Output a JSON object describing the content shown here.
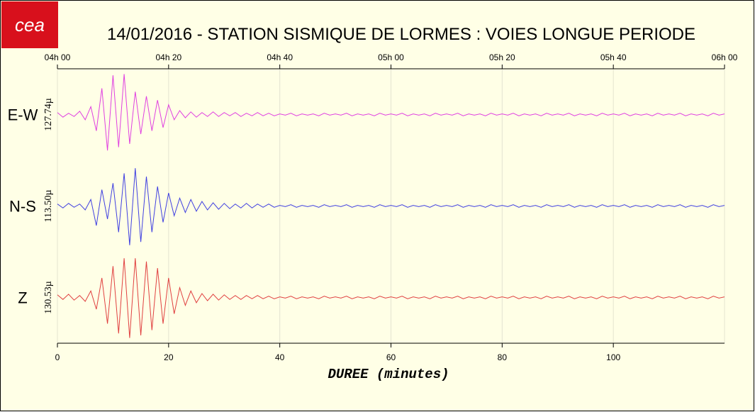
{
  "logo": "cea",
  "chart_data": {
    "type": "line",
    "title": "14/01/2016  -  STATION SISMIQUE DE LORMES : VOIES LONGUE PERIODE",
    "xlabel": "DUREE (minutes)",
    "xlim": [
      0,
      120
    ],
    "xticks": [
      0,
      20,
      40,
      60,
      80,
      100
    ],
    "top_ticks": [
      {
        "value": 0,
        "label": "04h 00"
      },
      {
        "value": 20,
        "label": "04h 20"
      },
      {
        "value": 40,
        "label": "04h 40"
      },
      {
        "value": 60,
        "label": "05h 00"
      },
      {
        "value": 80,
        "label": "05h 20"
      },
      {
        "value": 100,
        "label": "05h 40"
      },
      {
        "value": 120,
        "label": "06h 00"
      }
    ],
    "ylim": [
      -70,
      70
    ],
    "grid": true,
    "x": [
      0,
      1,
      2,
      3,
      4,
      5,
      6,
      7,
      8,
      9,
      10,
      11,
      12,
      13,
      14,
      15,
      16,
      17,
      18,
      19,
      20,
      21,
      22,
      23,
      24,
      25,
      26,
      27,
      28,
      29,
      30,
      31,
      32,
      33,
      34,
      35,
      36,
      37,
      38,
      39,
      40,
      41,
      42,
      43,
      44,
      45,
      46,
      47,
      48,
      49,
      50,
      51,
      52,
      53,
      54,
      55,
      56,
      57,
      58,
      59,
      60,
      61,
      62,
      63,
      64,
      65,
      66,
      67,
      68,
      69,
      70,
      71,
      72,
      73,
      74,
      75,
      76,
      77,
      78,
      79,
      80,
      81,
      82,
      83,
      84,
      85,
      86,
      87,
      88,
      89,
      90,
      91,
      92,
      93,
      94,
      95,
      96,
      97,
      98,
      99,
      100,
      101,
      102,
      103,
      104,
      105,
      106,
      107,
      108,
      109,
      110,
      111,
      112,
      113,
      114,
      115,
      116,
      117,
      118,
      119,
      120
    ],
    "series": [
      {
        "name": "E-W",
        "scale_label": "127.74µ",
        "color": "#e040e0",
        "values": [
          3,
          -4,
          2,
          -3,
          5,
          -8,
          12,
          -25,
          40,
          -55,
          60,
          -50,
          62,
          -45,
          35,
          -30,
          28,
          -25,
          22,
          -20,
          15,
          -8,
          6,
          -5,
          4,
          -4,
          3,
          -3,
          4,
          -3,
          3,
          -2,
          3,
          -3,
          2,
          -2,
          3,
          -2,
          2,
          -2,
          1,
          -1,
          2,
          -2,
          1,
          -1,
          1,
          -2,
          2,
          -1,
          1,
          -1,
          2,
          -2,
          1,
          -1,
          1,
          -2,
          2,
          -1,
          1,
          -1,
          2,
          -2,
          1,
          -1,
          1,
          -2,
          2,
          -1,
          1,
          -1,
          2,
          -2,
          1,
          -1,
          1,
          -2,
          2,
          -1,
          1,
          -1,
          2,
          -2,
          1,
          -1,
          1,
          -2,
          2,
          -1,
          1,
          -1,
          2,
          -2,
          1,
          -1,
          1,
          -2,
          2,
          -1,
          1,
          -1,
          2,
          -2,
          1,
          -1,
          1,
          -2,
          2,
          -1,
          1,
          -1,
          2,
          -2,
          1,
          -1,
          1,
          -2,
          2,
          -1,
          1
        ]
      },
      {
        "name": "N-S",
        "scale_label": "113.50µ",
        "color": "#4040e0",
        "values": [
          3,
          -3,
          4,
          -2,
          3,
          -6,
          10,
          -30,
          25,
          -20,
          35,
          -40,
          50,
          -60,
          58,
          -55,
          45,
          -40,
          30,
          -25,
          20,
          -15,
          12,
          -10,
          10,
          -8,
          7,
          -6,
          5,
          -5,
          4,
          -4,
          3,
          -3,
          4,
          -3,
          3,
          -2,
          3,
          -2,
          1,
          -1,
          2,
          -2,
          1,
          -1,
          1,
          -2,
          2,
          -1,
          1,
          -1,
          2,
          -2,
          1,
          -1,
          1,
          -2,
          2,
          -1,
          1,
          -1,
          2,
          -2,
          1,
          -1,
          1,
          -2,
          2,
          -1,
          1,
          -1,
          2,
          -2,
          1,
          -1,
          1,
          -2,
          2,
          -1,
          1,
          -1,
          2,
          -2,
          1,
          -1,
          1,
          -2,
          2,
          -1,
          1,
          -1,
          2,
          -2,
          1,
          -1,
          1,
          -2,
          2,
          -1,
          1,
          -1,
          2,
          -2,
          1,
          -1,
          1,
          -2,
          2,
          -1,
          1,
          -1,
          2,
          -2,
          1,
          -1,
          1,
          -2,
          2,
          -1,
          1
        ]
      },
      {
        "name": "Z",
        "scale_label": "130.53µ",
        "color": "#e04040",
        "values": [
          4,
          -3,
          5,
          -4,
          3,
          -6,
          10,
          -18,
          30,
          -40,
          48,
          -55,
          60,
          -62,
          60,
          -58,
          55,
          -50,
          45,
          -40,
          30,
          -25,
          15,
          -12,
          10,
          -8,
          6,
          -5,
          5,
          -4,
          4,
          -3,
          3,
          -3,
          3,
          -2,
          3,
          -2,
          2,
          -2,
          1,
          -1,
          2,
          -2,
          1,
          -1,
          1,
          -2,
          2,
          -1,
          1,
          -1,
          2,
          -2,
          1,
          -1,
          1,
          -2,
          2,
          -1,
          1,
          -1,
          2,
          -2,
          1,
          -1,
          1,
          -2,
          2,
          -1,
          1,
          -1,
          2,
          -2,
          1,
          -1,
          1,
          -2,
          2,
          -1,
          1,
          -1,
          2,
          -2,
          1,
          -1,
          1,
          -2,
          2,
          -1,
          1,
          -1,
          2,
          -2,
          1,
          -1,
          1,
          -2,
          2,
          -1,
          1,
          -1,
          2,
          -2,
          1,
          -1,
          1,
          -2,
          2,
          -1,
          1,
          -1,
          2,
          -2,
          1,
          -1,
          1,
          -2,
          2,
          -1,
          1
        ]
      }
    ]
  }
}
